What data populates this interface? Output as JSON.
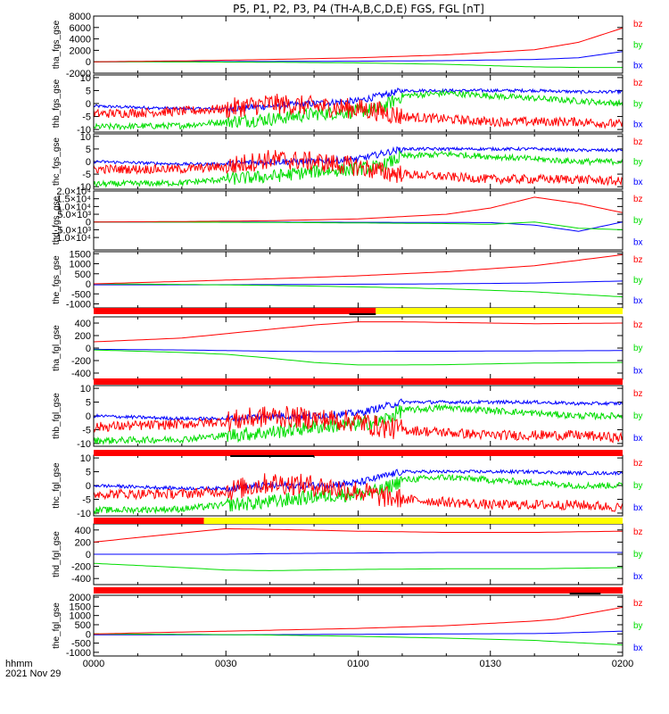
{
  "title": "P5, P1, P2, P3, P4 (TH-A,B,C,D,E) FGS, FGL [nT]",
  "footer": {
    "label": "hhmm",
    "date": "2021 Nov 29"
  },
  "colors": {
    "bx": "#0000ff",
    "by": "#00dd00",
    "bz": "#ff0000",
    "bar_red": "#ff0000",
    "bar_yellow": "#ffff00",
    "bar_black": "#000000"
  },
  "x_ticks": [
    "0000",
    "0030",
    "0100",
    "0130",
    "0200"
  ],
  "legend": [
    "bz",
    "by",
    "bx"
  ],
  "chart_data": [
    {
      "type": "line",
      "ylabel": "tha_fgs_gse",
      "ylim": [
        -2000,
        8000
      ],
      "yticks": [
        -2000,
        0,
        2000,
        4000,
        6000,
        8000
      ],
      "yticklabels": [
        "-2000",
        "0",
        "2000",
        "4000",
        "6000",
        "8000"
      ],
      "x": [
        0,
        20,
        40,
        60,
        80,
        100,
        110,
        120
      ],
      "series": [
        {
          "name": "bz",
          "values": [
            0,
            150,
            400,
            700,
            1200,
            2100,
            3400,
            5900
          ],
          "noise": 0
        },
        {
          "name": "by",
          "values": [
            0,
            -30,
            -80,
            -200,
            -450,
            -900,
            -1000,
            -1000
          ],
          "noise": 0
        },
        {
          "name": "bx",
          "values": [
            0,
            20,
            50,
            100,
            200,
            400,
            700,
            1800
          ],
          "noise": 0
        }
      ]
    },
    {
      "type": "line",
      "ylabel": "thb_fgs_gse",
      "ylim": [
        -11,
        11
      ],
      "yticks": [
        -10,
        -5,
        0,
        5,
        10
      ],
      "yticklabels": [
        "-10",
        "-5",
        "0",
        "5",
        "10"
      ],
      "x": [
        0,
        20,
        30,
        40,
        50,
        60,
        65,
        70,
        80,
        90,
        100,
        110,
        120
      ],
      "series": [
        {
          "name": "bz",
          "values": [
            -4,
            -3,
            -2,
            0,
            -1,
            -2,
            -3,
            -5,
            -6,
            -7,
            -7,
            -7,
            -8
          ],
          "noise": 1.8
        },
        {
          "name": "by",
          "values": [
            -9,
            -8.5,
            -7,
            -6,
            -4,
            -3,
            -2,
            3,
            4,
            3,
            2,
            1,
            0
          ],
          "noise": 1.2
        },
        {
          "name": "bx",
          "values": [
            -1,
            -2,
            -2,
            -1,
            0,
            1,
            3,
            5,
            5,
            5,
            5,
            4.5,
            4.5
          ],
          "noise": 0.6
        }
      ]
    },
    {
      "type": "line",
      "ylabel": "thc_fgs_gse",
      "ylim": [
        -11,
        11
      ],
      "yticks": [
        -10,
        -5,
        0,
        5,
        10
      ],
      "yticklabels": [
        "-10",
        "-5",
        "0",
        "5",
        "10"
      ],
      "x": [
        0,
        20,
        30,
        40,
        50,
        60,
        65,
        70,
        80,
        90,
        100,
        110,
        120
      ],
      "series": [
        {
          "name": "bz",
          "values": [
            -3,
            -3,
            -2,
            1,
            0,
            -2,
            -4,
            -5,
            -6,
            -7,
            -7,
            -7,
            -8
          ],
          "noise": 1.8
        },
        {
          "name": "by",
          "values": [
            -9,
            -8.5,
            -7,
            -6,
            -4,
            -3,
            -2,
            2,
            3,
            2,
            1,
            0,
            0
          ],
          "noise": 1.2
        },
        {
          "name": "bx",
          "values": [
            0,
            -1,
            -1,
            0,
            0,
            1,
            3,
            5,
            5,
            5,
            5,
            4.5,
            4.5
          ],
          "noise": 0.6
        }
      ]
    },
    {
      "type": "line",
      "ylabel": "thd_fgs_gse",
      "ylim": [
        -18000,
        20000
      ],
      "yticks": [
        -10000,
        -5000,
        0,
        5000,
        10000,
        15000,
        20000
      ],
      "yticklabels": [
        "-1.0×10⁴",
        "-5.0×10³",
        "0",
        "5.0×10³",
        "1.0×10⁴",
        "1.5×10⁴",
        "2.0×10⁴"
      ],
      "x": [
        0,
        20,
        40,
        60,
        80,
        90,
        100,
        110,
        120
      ],
      "series": [
        {
          "name": "bz",
          "values": [
            0,
            300,
            800,
            2000,
            5000,
            9000,
            16000,
            12000,
            6000
          ],
          "noise": 0
        },
        {
          "name": "by",
          "values": [
            0,
            -100,
            -300,
            -600,
            -1000,
            -1500,
            0,
            -4000,
            -5000
          ],
          "noise": 0
        },
        {
          "name": "bx",
          "values": [
            0,
            -50,
            -100,
            -200,
            -300,
            -400,
            -2000,
            -6000,
            0
          ],
          "noise": 0
        }
      ]
    },
    {
      "type": "line",
      "ylabel": "the_fgs_gse",
      "ylim": [
        -1200,
        1600
      ],
      "yticks": [
        -1000,
        -500,
        0,
        500,
        1000,
        1500
      ],
      "yticklabels": [
        "-1000",
        "-500",
        "0",
        "500",
        "1000",
        "1500"
      ],
      "x": [
        0,
        20,
        40,
        60,
        80,
        100,
        120
      ],
      "series": [
        {
          "name": "bz",
          "values": [
            0,
            120,
            250,
            400,
            600,
            900,
            1450
          ],
          "noise": 0
        },
        {
          "name": "by",
          "values": [
            0,
            -30,
            -80,
            -150,
            -250,
            -400,
            -650
          ],
          "noise": 0
        },
        {
          "name": "bx",
          "values": [
            -50,
            -50,
            -40,
            -20,
            0,
            40,
            140
          ],
          "noise": 0
        }
      ]
    },
    {
      "type": "line",
      "ylabel": "tha_fgl_gse",
      "ylim": [
        -500,
        500
      ],
      "yticks": [
        -400,
        -200,
        0,
        200,
        400
      ],
      "yticklabels": [
        "-400",
        "-200",
        "0",
        "200",
        "400"
      ],
      "x": [
        0,
        20,
        30,
        40,
        50,
        60,
        70,
        80,
        100,
        120
      ],
      "series": [
        {
          "name": "bz",
          "values": [
            100,
            160,
            230,
            300,
            370,
            420,
            420,
            410,
            390,
            400
          ],
          "noise": 0
        },
        {
          "name": "by",
          "values": [
            -30,
            -70,
            -100,
            -160,
            -230,
            -270,
            -270,
            -265,
            -240,
            -230
          ],
          "noise": 0
        },
        {
          "name": "bx",
          "values": [
            -20,
            -30,
            -40,
            -50,
            -55,
            -55,
            -50,
            -50,
            -45,
            -40
          ],
          "noise": 0
        }
      ]
    },
    {
      "type": "line",
      "ylabel": "thb_fgl_gse",
      "ylim": [
        -11,
        11
      ],
      "yticks": [
        -10,
        -5,
        0,
        5,
        10
      ],
      "yticklabels": [
        "-10",
        "-5",
        "0",
        "5",
        "10"
      ],
      "x": [
        0,
        20,
        30,
        40,
        50,
        60,
        65,
        70,
        80,
        90,
        100,
        110,
        120
      ],
      "series": [
        {
          "name": "bz",
          "values": [
            -4,
            -3,
            -2,
            0,
            -1,
            -2,
            -4,
            -5,
            -6,
            -7,
            -7,
            -7,
            -8
          ],
          "noise": 1.8
        },
        {
          "name": "by",
          "values": [
            -9,
            -8.5,
            -7,
            -6,
            -4,
            -3,
            -2,
            2,
            3,
            2,
            1,
            0,
            0
          ],
          "noise": 1.2
        },
        {
          "name": "bx",
          "values": [
            0,
            -1,
            -1,
            0,
            0,
            1,
            3,
            5,
            5,
            5,
            5,
            4.5,
            4.5
          ],
          "noise": 0.6
        }
      ]
    },
    {
      "type": "line",
      "ylabel": "thc_fgl_gse",
      "ylim": [
        -11,
        11
      ],
      "yticks": [
        -10,
        -5,
        0,
        5,
        10
      ],
      "yticklabels": [
        "-10",
        "-5",
        "0",
        "5",
        "10"
      ],
      "x": [
        0,
        20,
        30,
        40,
        50,
        60,
        65,
        70,
        80,
        90,
        100,
        110,
        120
      ],
      "series": [
        {
          "name": "bz",
          "values": [
            -3,
            -3,
            -2,
            1,
            0,
            -2,
            -4,
            -5,
            -6,
            -7,
            -7,
            -7,
            -8
          ],
          "noise": 1.8
        },
        {
          "name": "by",
          "values": [
            -9,
            -8.5,
            -7,
            -6,
            -4,
            -3,
            -2,
            2,
            3,
            2,
            1,
            0,
            0
          ],
          "noise": 1.2
        },
        {
          "name": "bx",
          "values": [
            0,
            -1,
            -1,
            0,
            0,
            1,
            3,
            5,
            5,
            5,
            5,
            4.5,
            4.5
          ],
          "noise": 0.6
        }
      ]
    },
    {
      "type": "line",
      "ylabel": "thd_fgl_gse",
      "ylim": [
        -500,
        500
      ],
      "yticks": [
        -400,
        -200,
        0,
        200,
        400
      ],
      "yticklabels": [
        "-400",
        "-200",
        "0",
        "200",
        "400"
      ],
      "x": [
        0,
        20,
        30,
        40,
        60,
        80,
        100,
        120
      ],
      "series": [
        {
          "name": "bz",
          "values": [
            200,
            350,
            420,
            410,
            380,
            360,
            360,
            380
          ],
          "noise": 0
        },
        {
          "name": "by",
          "values": [
            -150,
            -220,
            -260,
            -270,
            -250,
            -240,
            -240,
            -220
          ],
          "noise": 0
        },
        {
          "name": "bx",
          "values": [
            0,
            0,
            0,
            10,
            20,
            30,
            30,
            30
          ],
          "noise": 0
        }
      ]
    },
    {
      "type": "line",
      "ylabel": "the_fgl_gse",
      "ylim": [
        -1200,
        2100
      ],
      "yticks": [
        -1000,
        -500,
        0,
        500,
        1000,
        1500,
        2000
      ],
      "yticklabels": [
        "-1000",
        "-500",
        "0",
        "500",
        "1000",
        "1500",
        "2000"
      ],
      "x": [
        0,
        20,
        40,
        60,
        80,
        100,
        105,
        120
      ],
      "series": [
        {
          "name": "bz",
          "values": [
            0,
            100,
            200,
            300,
            450,
            700,
            800,
            1450
          ],
          "noise": 0
        },
        {
          "name": "by",
          "values": [
            0,
            -20,
            -60,
            -130,
            -230,
            -350,
            -420,
            -600
          ],
          "noise": 0
        },
        {
          "name": "bx",
          "values": [
            -50,
            -50,
            -40,
            -20,
            0,
            20,
            40,
            150
          ],
          "noise": 0
        }
      ]
    }
  ],
  "status_bars": [
    {
      "segments": [
        {
          "from": 0,
          "to": 64,
          "color": "red"
        },
        {
          "from": 64,
          "to": 120,
          "color": "yellow"
        }
      ],
      "marks": [
        {
          "from": 58,
          "to": 64
        }
      ]
    },
    {
      "segments": [
        {
          "from": 0,
          "to": 120,
          "color": "red"
        }
      ],
      "marks": []
    },
    {
      "segments": [
        {
          "from": 0,
          "to": 120,
          "color": "red"
        }
      ],
      "marks": [
        {
          "from": 31,
          "to": 50
        }
      ]
    },
    {
      "segments": [
        {
          "from": 0,
          "to": 25,
          "color": "red"
        },
        {
          "from": 25,
          "to": 120,
          "color": "yellow"
        }
      ],
      "marks": []
    },
    {
      "segments": [
        {
          "from": 0,
          "to": 120,
          "color": "red"
        }
      ],
      "marks": [
        {
          "from": 108,
          "to": 115
        }
      ]
    }
  ]
}
